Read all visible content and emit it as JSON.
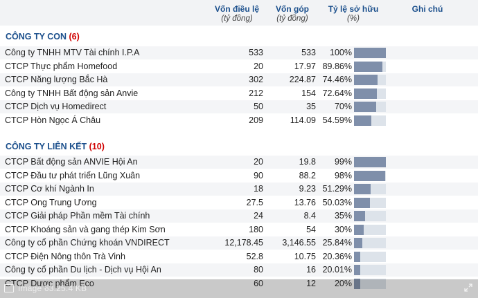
{
  "header": {
    "col_capital": "Vốn điều lệ",
    "col_capital_unit": "(tỷ đồng)",
    "col_contribution": "Vốn góp",
    "col_contribution_unit": "(tỷ đồng)",
    "col_ownership": "Tỷ lệ sở hữu",
    "col_ownership_unit": "(%)",
    "col_note": "Ghi chú"
  },
  "subsidiaries": {
    "title": "CÔNG TY CON",
    "count": "(6)",
    "rows": [
      {
        "name": "Công ty TNHH MTV Tài chính I.P.A",
        "capital": "533",
        "contribution": "533",
        "ownership": "100%",
        "ratio": 1.0
      },
      {
        "name": "CTCP Thực phẩm Homefood",
        "capital": "20",
        "contribution": "17.97",
        "ownership": "89.86%",
        "ratio": 0.8986
      },
      {
        "name": "CTCP Năng lượng Bắc Hà",
        "capital": "302",
        "contribution": "224.87",
        "ownership": "74.46%",
        "ratio": 0.7446
      },
      {
        "name": "Công ty TNHH Bất động sản Anvie",
        "capital": "212",
        "contribution": "154",
        "ownership": "72.64%",
        "ratio": 0.7264
      },
      {
        "name": "CTCP Dịch vụ Homedirect",
        "capital": "50",
        "contribution": "35",
        "ownership": "70%",
        "ratio": 0.7
      },
      {
        "name": "CTCP Hòn Ngọc Á Châu",
        "capital": "209",
        "contribution": "114.09",
        "ownership": "54.59%",
        "ratio": 0.5459
      }
    ]
  },
  "associates": {
    "title": "CÔNG TY LIÊN KẾT",
    "count": "(10)",
    "rows": [
      {
        "name": "CTCP Bất động sản ANVIE Hội An",
        "capital": "20",
        "contribution": "19.8",
        "ownership": "99%",
        "ratio": 0.99
      },
      {
        "name": "CTCP Đầu tư phát triển Lũng Xuân",
        "capital": "90",
        "contribution": "88.2",
        "ownership": "98%",
        "ratio": 0.98
      },
      {
        "name": "CTCP Cơ khí Ngành In",
        "capital": "18",
        "contribution": "9.23",
        "ownership": "51.29%",
        "ratio": 0.5129
      },
      {
        "name": "CTCP Ong Trung Ương",
        "capital": "27.5",
        "contribution": "13.76",
        "ownership": "50.03%",
        "ratio": 0.5003
      },
      {
        "name": "CTCP Giải pháp Phần mềm Tài chính",
        "capital": "24",
        "contribution": "8.4",
        "ownership": "35%",
        "ratio": 0.35
      },
      {
        "name": "CTCP Khoáng sản và gang thép Kim Sơn",
        "capital": "180",
        "contribution": "54",
        "ownership": "30%",
        "ratio": 0.3
      },
      {
        "name": "Công ty cổ phần Chứng khoán VNDIRECT",
        "capital": "12,178.45",
        "contribution": "3,146.55",
        "ownership": "25.84%",
        "ratio": 0.2584
      },
      {
        "name": "CTCP Điện Nông thôn Trà Vinh",
        "capital": "52.8",
        "contribution": "10.75",
        "ownership": "20.36%",
        "ratio": 0.2036
      },
      {
        "name": "Công ty cổ phần Du lịch - Dịch vụ Hội An",
        "capital": "80",
        "contribution": "16",
        "ownership": "20.01%",
        "ratio": 0.2001
      },
      {
        "name": "CTCP Dược phẩm Eco",
        "capital": "60",
        "contribution": "12",
        "ownership": "20%",
        "ratio": 0.2
      }
    ]
  },
  "footer": {
    "meta": "Image 63.25.4 KB",
    "image_icon": "image-icon",
    "expand_icon": "expand-icon"
  }
}
